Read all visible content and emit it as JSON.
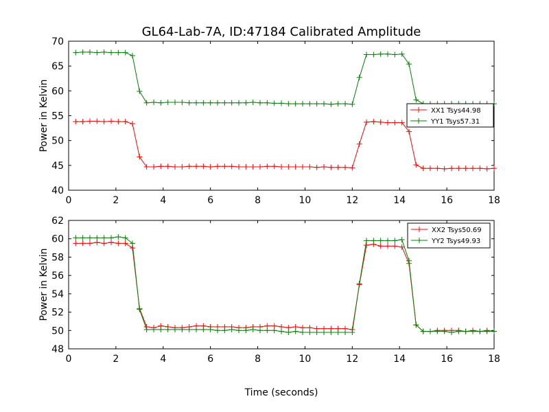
{
  "title": "GL64-Lab-7A, ID:47184 Calibrated Amplitude",
  "xlabel": "Time (seconds)",
  "colors": {
    "xx": "#ff0000",
    "yy": "#008000"
  },
  "chart_data": [
    {
      "type": "line",
      "ylabel": "Power in Kelvin",
      "xlim": [
        0,
        18
      ],
      "ylim": [
        40,
        70
      ],
      "xticks": [
        "0",
        "2",
        "4",
        "6",
        "8",
        "10",
        "12",
        "14",
        "16",
        "18"
      ],
      "yticks": [
        "40",
        "45",
        "50",
        "55",
        "60",
        "65",
        "70"
      ],
      "legend_position": "center-right",
      "x": [
        0.3,
        0.6,
        0.9,
        1.2,
        1.5,
        1.8,
        2.1,
        2.4,
        2.7,
        3.0,
        3.3,
        3.6,
        3.9,
        4.2,
        4.5,
        4.8,
        5.1,
        5.4,
        5.7,
        6.0,
        6.3,
        6.6,
        6.9,
        7.2,
        7.5,
        7.8,
        8.1,
        8.4,
        8.7,
        9.0,
        9.3,
        9.6,
        9.9,
        10.2,
        10.5,
        10.8,
        11.1,
        11.4,
        11.7,
        12.0,
        12.3,
        12.6,
        12.9,
        13.2,
        13.5,
        13.8,
        14.1,
        14.4,
        14.7,
        15.0,
        15.3,
        15.6,
        15.9,
        16.2,
        16.5,
        16.8,
        17.1,
        17.4,
        17.7,
        18.0
      ],
      "series": [
        {
          "name": "XX1 Tsys44.98",
          "color_key": "xx",
          "values": [
            53.8,
            53.8,
            53.9,
            53.9,
            53.8,
            53.9,
            53.8,
            53.8,
            53.4,
            46.7,
            44.7,
            44.7,
            44.8,
            44.8,
            44.7,
            44.7,
            44.8,
            44.8,
            44.8,
            44.7,
            44.8,
            44.8,
            44.8,
            44.7,
            44.7,
            44.7,
            44.7,
            44.8,
            44.8,
            44.7,
            44.7,
            44.7,
            44.7,
            44.7,
            44.6,
            44.7,
            44.6,
            44.6,
            44.6,
            44.5,
            49.3,
            53.7,
            53.8,
            53.7,
            53.6,
            53.6,
            53.6,
            51.8,
            45.1,
            44.4,
            44.4,
            44.4,
            44.3,
            44.4,
            44.4,
            44.4,
            44.4,
            44.4,
            44.3,
            44.4
          ]
        },
        {
          "name": "YY1 Tsys57.31",
          "color_key": "yy",
          "values": [
            67.7,
            67.8,
            67.8,
            67.7,
            67.8,
            67.7,
            67.7,
            67.7,
            67.1,
            59.9,
            57.6,
            57.7,
            57.6,
            57.7,
            57.7,
            57.7,
            57.6,
            57.6,
            57.6,
            57.6,
            57.6,
            57.6,
            57.6,
            57.6,
            57.6,
            57.7,
            57.6,
            57.6,
            57.5,
            57.5,
            57.4,
            57.4,
            57.4,
            57.4,
            57.4,
            57.4,
            57.3,
            57.4,
            57.4,
            57.3,
            62.7,
            67.3,
            67.3,
            67.4,
            67.4,
            67.3,
            67.4,
            65.4,
            58.2,
            57.4,
            57.4,
            57.4,
            57.4,
            57.4,
            57.4,
            57.4,
            57.4,
            57.4,
            57.4,
            57.4
          ]
        }
      ]
    },
    {
      "type": "line",
      "ylabel": "Power in Kelvin",
      "xlim": [
        0,
        18
      ],
      "ylim": [
        48,
        62
      ],
      "xticks": [
        "0",
        "2",
        "4",
        "6",
        "8",
        "10",
        "12",
        "14",
        "16",
        "18"
      ],
      "yticks": [
        "48",
        "50",
        "52",
        "54",
        "56",
        "58",
        "60",
        "62"
      ],
      "legend_position": "upper-right",
      "x": [
        0.3,
        0.6,
        0.9,
        1.2,
        1.5,
        1.8,
        2.1,
        2.4,
        2.7,
        3.0,
        3.3,
        3.6,
        3.9,
        4.2,
        4.5,
        4.8,
        5.1,
        5.4,
        5.7,
        6.0,
        6.3,
        6.6,
        6.9,
        7.2,
        7.5,
        7.8,
        8.1,
        8.4,
        8.7,
        9.0,
        9.3,
        9.6,
        9.9,
        10.2,
        10.5,
        10.8,
        11.1,
        11.4,
        11.7,
        12.0,
        12.3,
        12.6,
        12.9,
        13.2,
        13.5,
        13.8,
        14.1,
        14.4,
        14.7,
        15.0,
        15.3,
        15.6,
        15.9,
        16.2,
        16.5,
        16.8,
        17.1,
        17.4,
        17.7,
        18.0
      ],
      "series": [
        {
          "name": "XX2 Tsys50.69",
          "color_key": "xx",
          "values": [
            59.5,
            59.5,
            59.5,
            59.6,
            59.5,
            59.6,
            59.5,
            59.5,
            59.0,
            52.4,
            50.4,
            50.3,
            50.5,
            50.4,
            50.3,
            50.3,
            50.4,
            50.5,
            50.5,
            50.4,
            50.4,
            50.4,
            50.4,
            50.3,
            50.3,
            50.4,
            50.4,
            50.5,
            50.5,
            50.4,
            50.3,
            50.4,
            50.3,
            50.3,
            50.2,
            50.2,
            50.2,
            50.2,
            50.2,
            50.1,
            55.0,
            59.3,
            59.4,
            59.2,
            59.2,
            59.2,
            59.1,
            57.3,
            50.6,
            49.9,
            49.9,
            50.0,
            50.0,
            50.0,
            50.0,
            49.9,
            50.0,
            49.9,
            50.0,
            49.9
          ]
        },
        {
          "name": "YY2 Tsys49.93",
          "color_key": "yy",
          "values": [
            60.1,
            60.1,
            60.1,
            60.1,
            60.1,
            60.1,
            60.2,
            60.1,
            59.5,
            52.3,
            50.1,
            50.1,
            50.1,
            50.1,
            50.1,
            50.1,
            50.1,
            50.1,
            50.1,
            50.1,
            50.0,
            50.0,
            50.1,
            50.0,
            50.0,
            50.1,
            50.0,
            50.0,
            50.0,
            49.9,
            49.8,
            49.9,
            49.8,
            49.8,
            49.8,
            49.8,
            49.8,
            49.8,
            49.8,
            49.8,
            55.1,
            59.8,
            59.8,
            59.8,
            59.8,
            59.8,
            59.9,
            57.6,
            50.6,
            49.9,
            49.9,
            49.9,
            49.9,
            49.8,
            49.9,
            49.9,
            49.9,
            49.9,
            49.9,
            49.9
          ]
        }
      ]
    }
  ]
}
